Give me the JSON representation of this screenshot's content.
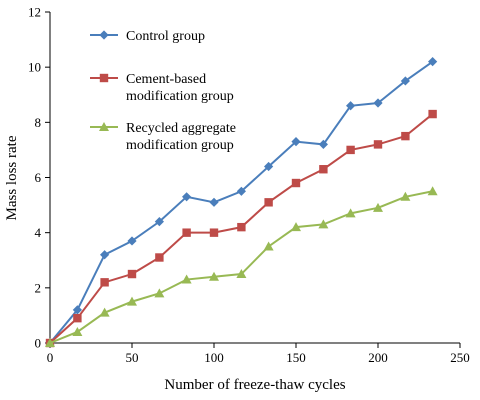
{
  "chart_data": {
    "type": "line",
    "title": "",
    "xlabel": "Number of freeze-thaw cycles",
    "ylabel": "Mass loss rate",
    "xlim": [
      0,
      250
    ],
    "ylim": [
      0,
      12
    ],
    "xticks": [
      0,
      50,
      100,
      150,
      200,
      250
    ],
    "yticks": [
      0,
      2,
      4,
      6,
      8,
      10,
      12
    ],
    "grid": false,
    "legend_position": "top-left",
    "x": [
      0,
      16.7,
      33.3,
      50,
      66.7,
      83.3,
      100,
      116.7,
      133.3,
      150,
      166.7,
      183.3,
      200,
      216.7,
      233.3
    ],
    "series": [
      {
        "name_lines": [
          "Control group"
        ],
        "color": "#4a7ebb",
        "marker": "diamond",
        "values": [
          0,
          1.2,
          3.2,
          3.7,
          4.4,
          5.3,
          5.1,
          5.5,
          6.4,
          7.3,
          7.2,
          8.6,
          8.7,
          9.5,
          10.2
        ]
      },
      {
        "name_lines": [
          "Cement-based",
          "modification group"
        ],
        "color": "#be4b48",
        "marker": "square",
        "values": [
          0,
          0.9,
          2.2,
          2.5,
          3.1,
          4.0,
          4.0,
          4.2,
          5.1,
          5.8,
          6.3,
          7.0,
          7.2,
          7.5,
          8.3
        ]
      },
      {
        "name_lines": [
          "Recycled aggregate",
          "modification group"
        ],
        "color": "#98b954",
        "marker": "triangle",
        "values": [
          0,
          0.4,
          1.1,
          1.5,
          1.8,
          2.3,
          2.4,
          2.5,
          3.5,
          4.2,
          4.3,
          4.7,
          4.9,
          5.3,
          5.5
        ]
      }
    ]
  }
}
